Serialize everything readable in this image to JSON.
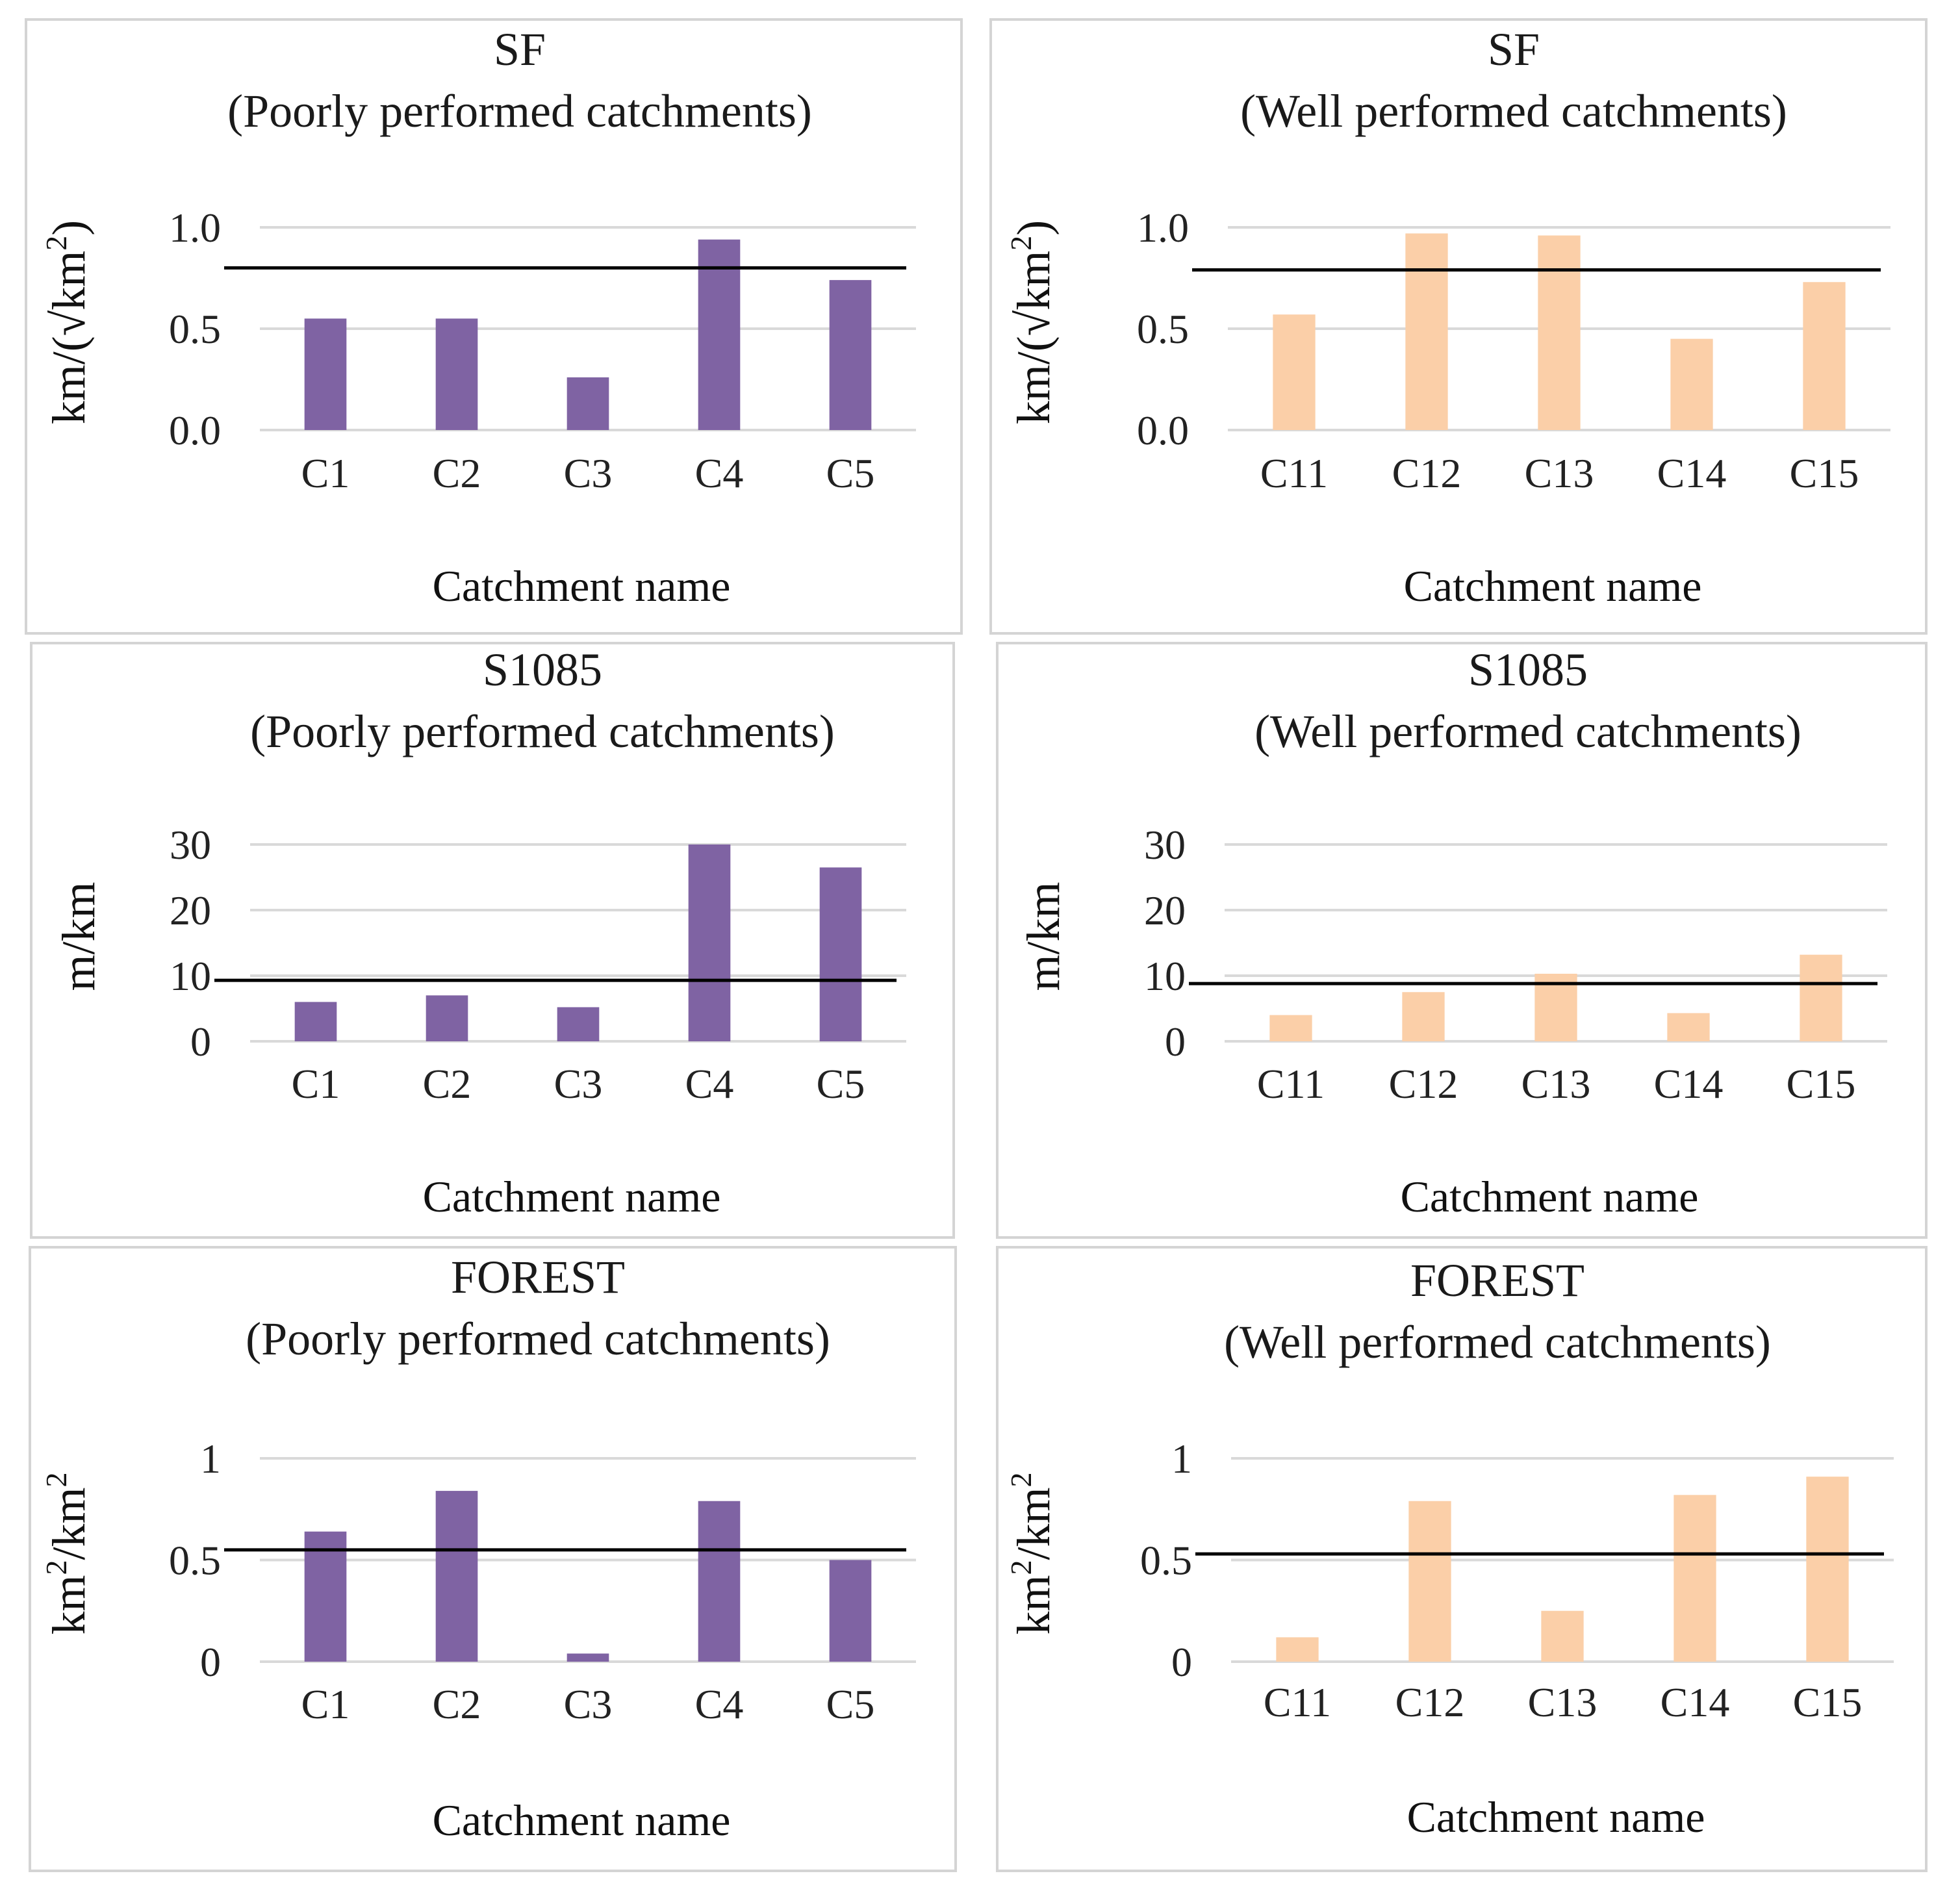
{
  "chart_data": [
    {
      "type": "bar",
      "title": "SF",
      "subtitle": "(Poorly performed catchments)",
      "categories": [
        "C1",
        "C2",
        "C3",
        "C4",
        "C5"
      ],
      "values": [
        0.55,
        0.55,
        0.26,
        0.94,
        0.74
      ],
      "reference_line": 0.8,
      "xlabel": "Catchment name",
      "ylabel": "km/(√km²)",
      "ylabel_parts": {
        "pre": "km/(√km",
        "sup": "2",
        "post": ")"
      },
      "ylim": [
        0,
        1
      ],
      "yticks": [
        0,
        0.5,
        1
      ],
      "ytick_labels": [
        "0.0",
        "0.5",
        "1.0"
      ],
      "color": "#7f63a3"
    },
    {
      "type": "bar",
      "title": "SF",
      "subtitle": "(Well performed catchments)",
      "categories": [
        "C11",
        "C12",
        "C13",
        "C14",
        "C15"
      ],
      "values": [
        0.57,
        0.97,
        0.96,
        0.45,
        0.73
      ],
      "reference_line": 0.79,
      "xlabel": "Catchment name",
      "ylabel": "km/(√km²)",
      "ylabel_parts": {
        "pre": "km/(√km",
        "sup": "2",
        "post": ")"
      },
      "ylim": [
        0,
        1
      ],
      "yticks": [
        0,
        0.5,
        1
      ],
      "ytick_labels": [
        "0.0",
        "0.5",
        "1.0"
      ],
      "color": "#fbcfa8"
    },
    {
      "type": "bar",
      "title": "S1085",
      "subtitle": "(Poorly performed catchments)",
      "categories": [
        "C1",
        "C2",
        "C3",
        "C4",
        "C5"
      ],
      "values": [
        6,
        7,
        5.2,
        30,
        26.5
      ],
      "reference_line": 9.3,
      "xlabel": "Catchment name",
      "ylabel": "m/km",
      "ylabel_parts": {
        "pre": "m/km",
        "sup": "",
        "post": ""
      },
      "ylim": [
        0,
        30
      ],
      "yticks": [
        0,
        10,
        20,
        30
      ],
      "ytick_labels": [
        "0",
        "10",
        "20",
        "30"
      ],
      "color": "#7f63a3"
    },
    {
      "type": "bar",
      "title": "S1085",
      "subtitle": "(Well performed catchments)",
      "categories": [
        "C11",
        "C12",
        "C13",
        "C14",
        "C15"
      ],
      "values": [
        4,
        7.5,
        10.3,
        4.3,
        13.2
      ],
      "reference_line": 8.8,
      "xlabel": "Catchment name",
      "ylabel": "m/km",
      "ylabel_parts": {
        "pre": "m/km",
        "sup": "",
        "post": ""
      },
      "ylim": [
        0,
        30
      ],
      "yticks": [
        0,
        10,
        20,
        30
      ],
      "ytick_labels": [
        "0",
        "10",
        "20",
        "30"
      ],
      "color": "#fbcfa8"
    },
    {
      "type": "bar",
      "title": "FOREST",
      "subtitle": "(Poorly performed catchments)",
      "categories": [
        "C1",
        "C2",
        "C3",
        "C4",
        "C5"
      ],
      "values": [
        0.64,
        0.84,
        0.04,
        0.79,
        0.5
      ],
      "reference_line": 0.55,
      "xlabel": "Catchment name",
      "ylabel": "km²/km²",
      "ylabel_parts": {
        "pre": "km",
        "sup": "2",
        "post": "/km²"
      },
      "ylim": [
        0,
        1
      ],
      "yticks": [
        0,
        0.5,
        1
      ],
      "ytick_labels": [
        "0",
        "0.5",
        "1"
      ],
      "color": "#7f63a3"
    },
    {
      "type": "bar",
      "title": "FOREST",
      "subtitle": "(Well performed catchments)",
      "categories": [
        "C11",
        "C12",
        "C13",
        "C14",
        "C15"
      ],
      "values": [
        0.12,
        0.79,
        0.25,
        0.82,
        0.91
      ],
      "reference_line": 0.53,
      "xlabel": "Catchment name",
      "ylabel": "km²/km²",
      "ylabel_parts": {
        "pre": "km",
        "sup": "2",
        "post": "/km²"
      },
      "ylim": [
        0,
        1
      ],
      "yticks": [
        0,
        0.5,
        1
      ],
      "ytick_labels": [
        "0",
        "0.5",
        "1"
      ],
      "color": "#fbcfa8"
    }
  ]
}
